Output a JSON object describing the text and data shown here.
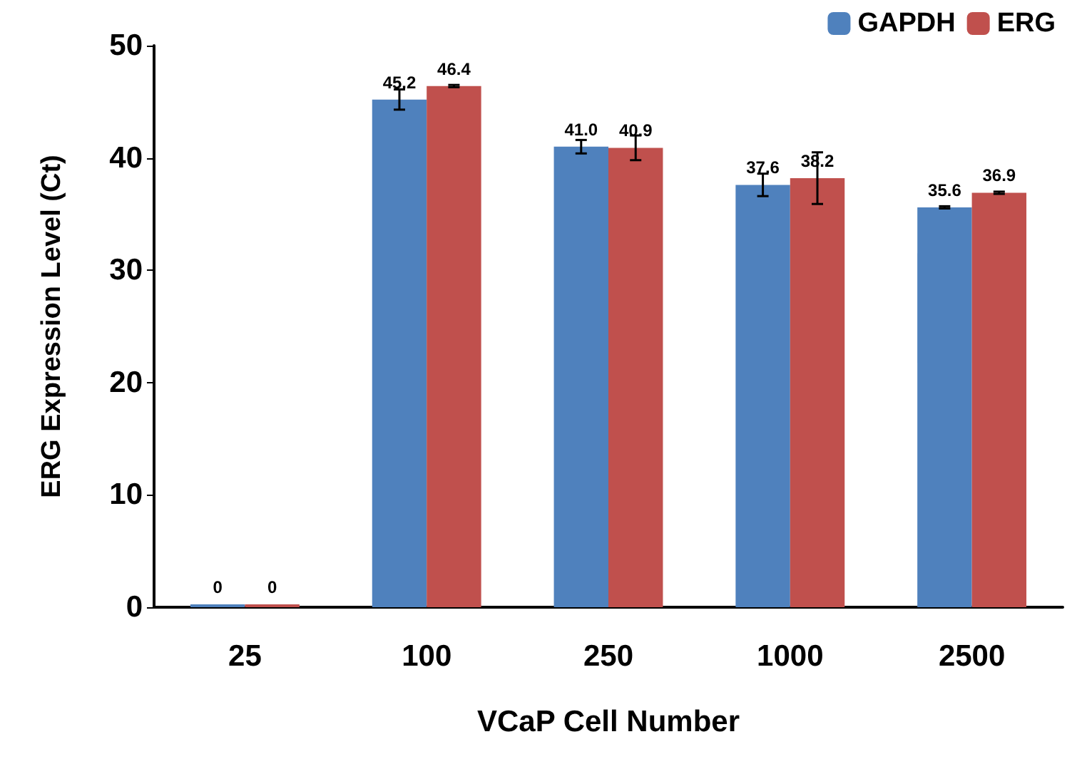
{
  "chart_data": {
    "type": "bar",
    "xlabel": "VCaP Cell Number",
    "ylabel": "ERG Expression Level (Ct)",
    "categories": [
      "25",
      "100",
      "250",
      "1000",
      "2500"
    ],
    "series": [
      {
        "name": "GAPDH",
        "color": "#4f81bd",
        "values": [
          0,
          45.2,
          41.0,
          37.6,
          35.6
        ],
        "value_labels": [
          "0",
          "45.2",
          "41.0",
          "37.6",
          "35.6"
        ],
        "errors": [
          null,
          0.9,
          0.6,
          1.0,
          0.1
        ]
      },
      {
        "name": "ERG",
        "color": "#c0504d",
        "values": [
          0,
          46.4,
          40.9,
          38.2,
          36.9
        ],
        "value_labels": [
          "0",
          "46.4",
          "40.9",
          "38.2",
          "36.9"
        ],
        "errors": [
          null,
          0.1,
          1.1,
          2.3,
          0.1
        ]
      }
    ],
    "ylim": [
      0,
      50
    ],
    "yticks": [
      0,
      10,
      20,
      30,
      40,
      50
    ],
    "grid": false,
    "legend": "top right"
  }
}
